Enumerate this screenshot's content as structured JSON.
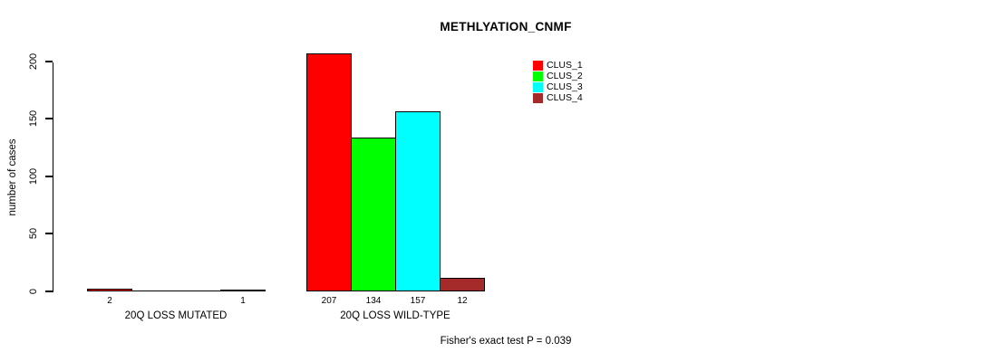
{
  "figure": {
    "background": "#FFFFFF",
    "axis_color": "#000000",
    "text_color": "#000000"
  },
  "chart_data": {
    "type": "bar",
    "title": "METHLYATION_CNMF",
    "ylabel": "number of cases",
    "xlabel": "",
    "ylim": [
      0,
      200
    ],
    "yticks": [
      0,
      50,
      100,
      150,
      200
    ],
    "grid": false,
    "series": [
      "CLUS_1",
      "CLUS_2",
      "CLUS_3",
      "CLUS_4"
    ],
    "colors": [
      "#FF0000",
      "#00FF00",
      "#00FFFF",
      "#A52A2A"
    ],
    "groups": [
      {
        "label": "20Q LOSS MUTATED",
        "values": [
          2,
          0,
          0,
          1
        ],
        "value_labels": [
          "2",
          "",
          "",
          "1"
        ]
      },
      {
        "label": "20Q LOSS WILD-TYPE",
        "values": [
          207,
          134,
          157,
          12
        ],
        "value_labels": [
          "207",
          "134",
          "157",
          "12"
        ]
      }
    ],
    "legend": {
      "position": "top-right",
      "entries": [
        "CLUS_1",
        "CLUS_2",
        "CLUS_3",
        "CLUS_4"
      ]
    },
    "annotation": "Fisher's exact test P = 0.039"
  }
}
